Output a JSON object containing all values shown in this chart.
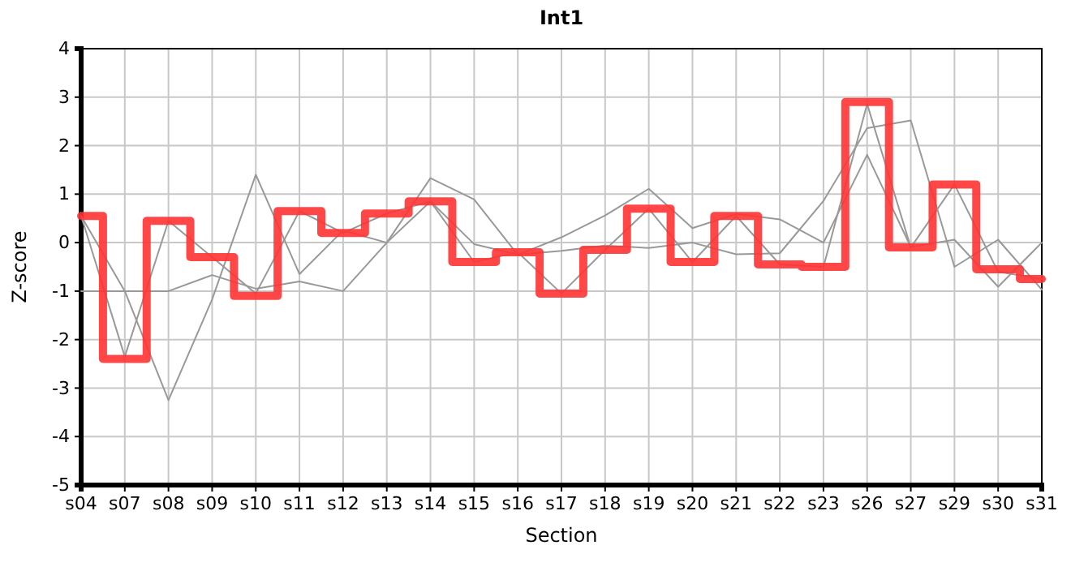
{
  "chart_data": {
    "type": "line",
    "title": "Int1",
    "xlabel": "Section",
    "ylabel": "Z-score",
    "categories": [
      "s04",
      "s07",
      "s08",
      "s09",
      "s10",
      "s11",
      "s12",
      "s13",
      "s14",
      "s15",
      "s16",
      "s17",
      "s18",
      "s19",
      "s20",
      "s21",
      "s22",
      "s23",
      "s26",
      "s27",
      "s29",
      "s30",
      "s31"
    ],
    "ylim": [
      -5,
      4
    ],
    "yticks": [
      -5,
      -4,
      -3,
      -2,
      -1,
      0,
      1,
      2,
      3,
      4
    ],
    "grid": true,
    "marker": "none",
    "series": [
      {
        "color": "#999999",
        "values": [
          0.55,
          -1.0,
          -3.25,
          -1.17,
          1.4,
          -0.65,
          0.25,
          0.0,
          1.33,
          0.89,
          -0.25,
          0.11,
          0.56,
          1.11,
          0.3,
          0.59,
          0.48,
          0.0,
          1.81,
          -0.09,
          0.06,
          -0.91,
          0.0
        ]
      },
      {
        "color": "#999999",
        "values": [
          -1.0,
          -1.0,
          -1.0,
          -0.67,
          -0.95,
          -0.8,
          -1.0,
          0.0,
          0.85,
          -0.03,
          -0.25,
          -0.17,
          -0.06,
          -0.11,
          0.0,
          -0.24,
          -0.22,
          0.86,
          2.36,
          2.52,
          -0.5,
          0.06,
          -0.97
        ]
      },
      {
        "color": "#999999",
        "values": [
          0.55,
          -2.35,
          0.45,
          -0.3,
          -1.05,
          0.65,
          0.2,
          0.6,
          0.85,
          -0.4,
          -0.2,
          -1.05,
          -0.15,
          0.7,
          -0.4,
          0.55,
          -0.45,
          -0.5,
          2.86,
          -0.1,
          1.2,
          -0.6,
          -0.75
        ]
      },
      {
        "type": "step",
        "color": "#ff3333",
        "values": [
          0.55,
          -2.4,
          0.45,
          -0.3,
          -1.1,
          0.65,
          0.2,
          0.6,
          0.85,
          -0.4,
          -0.2,
          -1.05,
          -0.15,
          0.7,
          -0.4,
          0.55,
          -0.45,
          -0.5,
          2.9,
          -0.1,
          1.2,
          -0.55,
          -0.75
        ]
      }
    ]
  }
}
